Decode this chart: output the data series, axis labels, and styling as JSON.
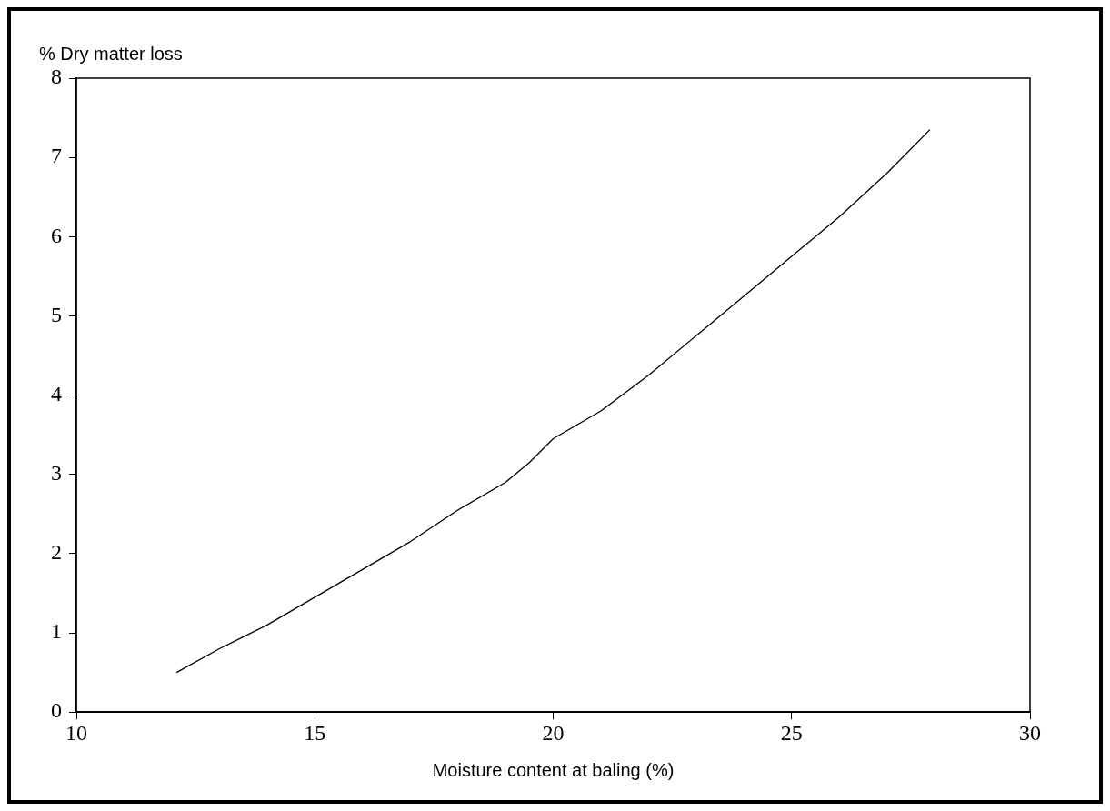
{
  "chart_data": {
    "type": "line",
    "xlabel": "Moisture content at baling (%)",
    "ylabel": "% Dry matter loss",
    "x": [
      12.1,
      13,
      14,
      15,
      16,
      17,
      18,
      19,
      19.5,
      20,
      21,
      22,
      23,
      24,
      25,
      26,
      27,
      27.9
    ],
    "series": [
      {
        "color": "#000000",
        "values": [
          0.5,
          0.8,
          1.1,
          1.45,
          1.8,
          2.15,
          2.55,
          2.9,
          3.15,
          3.45,
          3.8,
          4.25,
          4.75,
          5.25,
          5.75,
          6.25,
          6.8,
          7.35
        ]
      }
    ],
    "xlim": [
      10,
      30
    ],
    "xticks": [
      10,
      15,
      20,
      25,
      30
    ],
    "ylim": [
      0,
      8
    ],
    "yticks": [
      0,
      1,
      2,
      3,
      4,
      5,
      6,
      7,
      8
    ],
    "grid": false,
    "legend": false,
    "marker": "none",
    "line_style": "solid"
  }
}
